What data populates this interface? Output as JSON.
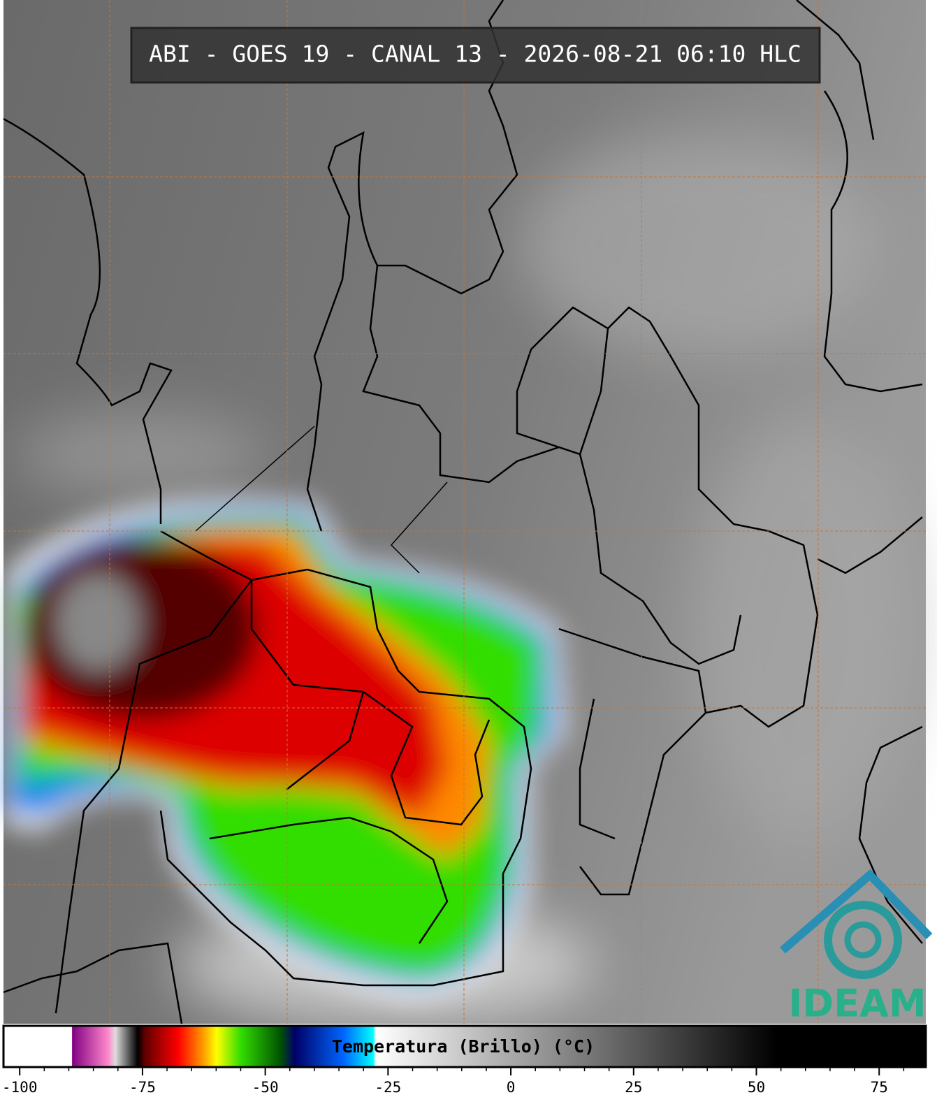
{
  "title": "ABI - GOES 19 - CANAL 13 - 2026-08-21 06:10 HLC",
  "logo": "IDEAM",
  "colorbar": {
    "label": "Temperatura (Brillo) (°C)",
    "range": [
      -103.3,
      84.5
    ],
    "ticks": [
      -100,
      -75,
      -50,
      -25,
      0,
      25,
      50,
      75
    ],
    "minor_ticks": [
      -95,
      -90,
      -85,
      -80,
      -70,
      -65,
      -60,
      -55,
      -45,
      -40,
      -35,
      -30,
      -20,
      -15,
      -10,
      -5,
      5,
      10,
      15,
      20,
      30,
      35,
      40,
      45,
      55,
      60,
      65,
      70,
      80
    ],
    "colormap": [
      {
        "value": -103.3,
        "color": "#ffffff"
      },
      {
        "value": -89.4,
        "color": "#ffffff"
      },
      {
        "value": -89.3,
        "color": "#800080"
      },
      {
        "value": -82,
        "color": "#ff88cc"
      },
      {
        "value": -80.5,
        "color": "#dddddd"
      },
      {
        "value": -76,
        "color": "#000000"
      },
      {
        "value": -74.5,
        "color": "#600000"
      },
      {
        "value": -67.7,
        "color": "#ff0000"
      },
      {
        "value": -62.7,
        "color": "#ff9900"
      },
      {
        "value": -59.9,
        "color": "#ffff00"
      },
      {
        "value": -55,
        "color": "#33dd00"
      },
      {
        "value": -47,
        "color": "#005500"
      },
      {
        "value": -44,
        "color": "#000066"
      },
      {
        "value": -34,
        "color": "#0066ff"
      },
      {
        "value": -28,
        "color": "#00ffff"
      },
      {
        "value": -27.5,
        "color": "#ffffff"
      },
      {
        "value": 54,
        "color": "#000000"
      },
      {
        "value": 84.5,
        "color": "#000000"
      }
    ]
  }
}
